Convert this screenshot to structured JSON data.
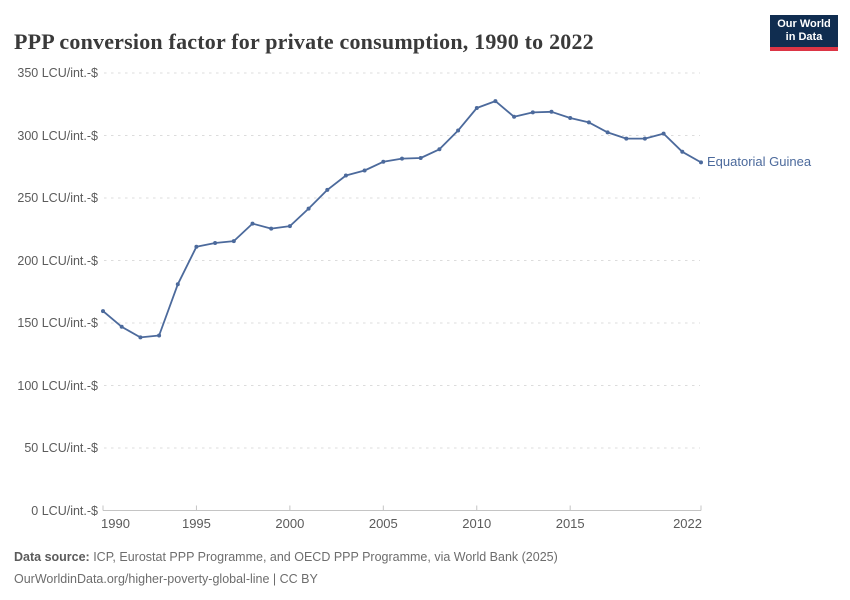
{
  "header": {
    "title": "PPP conversion factor for private consumption, 1990 to 2022",
    "logo": {
      "line1": "Our World",
      "line2": "in Data"
    }
  },
  "chart_data": {
    "type": "line",
    "title": "PPP conversion factor for private consumption, 1990 to 2022",
    "xlabel": "",
    "ylabel": "",
    "y_unit_suffix": "LCU/int.-$",
    "ylim": [
      0,
      350
    ],
    "y_ticks": [
      0,
      50,
      100,
      150,
      200,
      250,
      300,
      350
    ],
    "x_ticks": [
      1990,
      1995,
      2000,
      2005,
      2010,
      2015,
      2022
    ],
    "xlim": [
      1990,
      2022
    ],
    "grid": "horizontal-dashed",
    "legend_position": "end-of-line-label",
    "series": [
      {
        "name": "Equatorial Guinea",
        "color": "#4c6a9c",
        "x": [
          1990,
          1991,
          1992,
          1993,
          1994,
          1995,
          1996,
          1997,
          1998,
          1999,
          2000,
          2001,
          2002,
          2003,
          2004,
          2005,
          2006,
          2007,
          2008,
          2009,
          2010,
          2011,
          2012,
          2013,
          2014,
          2015,
          2016,
          2017,
          2018,
          2019,
          2020,
          2021,
          2022
        ],
        "values": [
          159.5,
          147,
          138.5,
          140,
          181,
          211,
          214,
          215.5,
          229.5,
          225.5,
          227.5,
          241.5,
          256.5,
          268,
          272,
          279,
          281.5,
          282,
          289,
          304,
          322,
          327.5,
          315,
          318.5,
          319,
          314,
          310.5,
          302.5,
          297.5,
          297.5,
          301.5,
          287,
          278.5
        ]
      }
    ]
  },
  "footer": {
    "source_label": "Data source:",
    "source_text": " ICP, Eurostat PPP Programme, and OECD PPP Programme, via World Bank (2025)",
    "citation": "OurWorldinData.org/higher-poverty-global-line | CC BY"
  },
  "colors": {
    "line": "#4c6a9c",
    "grid": "#dcdcdc",
    "axis": "#c4c4c4",
    "tick_text": "#5b5b5b",
    "title_text": "#3a3a3a",
    "footer_text": "#6d6d6d",
    "logo_bg": "#102d50",
    "logo_red": "#dc3545"
  }
}
